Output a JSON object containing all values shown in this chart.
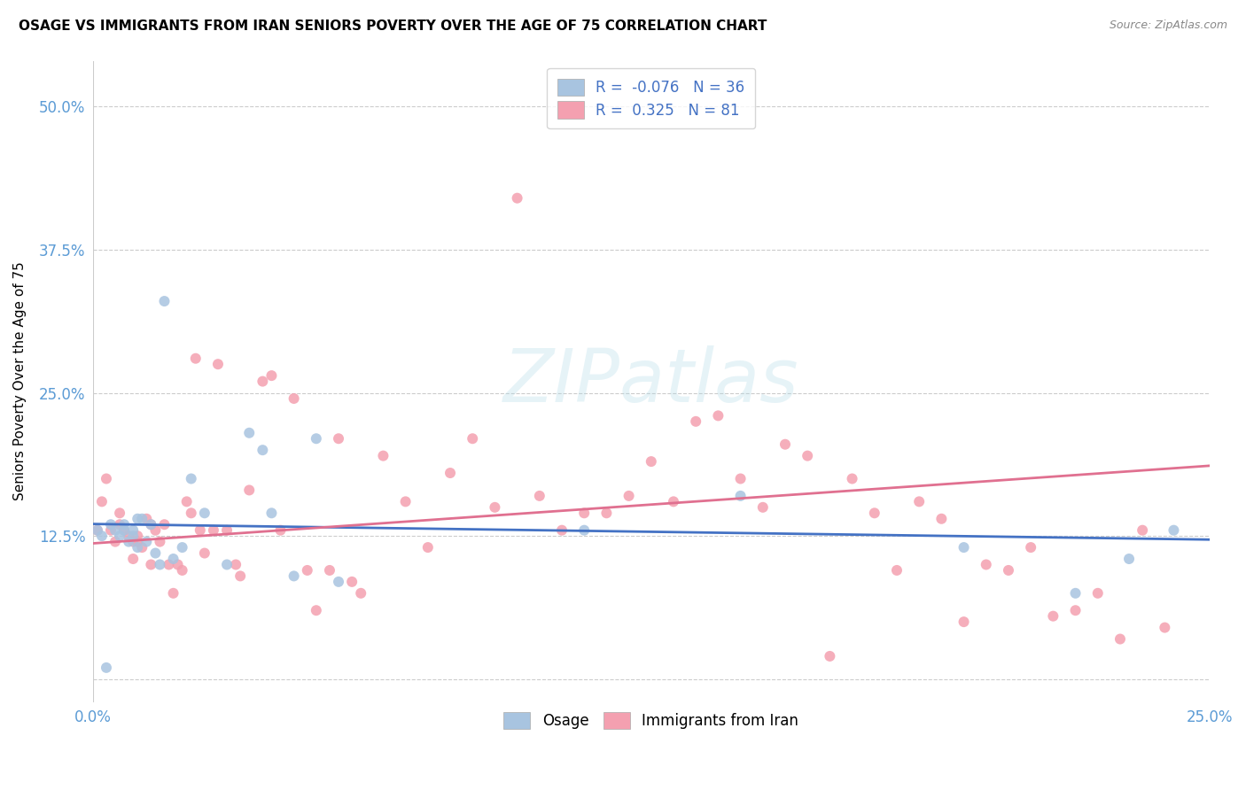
{
  "title": "OSAGE VS IMMIGRANTS FROM IRAN SENIORS POVERTY OVER THE AGE OF 75 CORRELATION CHART",
  "source": "Source: ZipAtlas.com",
  "ylabel": "Seniors Poverty Over the Age of 75",
  "xlim": [
    0.0,
    0.25
  ],
  "ylim": [
    -0.02,
    0.54
  ],
  "yticks": [
    0.0,
    0.125,
    0.25,
    0.375,
    0.5
  ],
  "ytick_labels": [
    "",
    "12.5%",
    "25.0%",
    "37.5%",
    "50.0%"
  ],
  "xticks": [
    0.0,
    0.05,
    0.1,
    0.15,
    0.2,
    0.25
  ],
  "xtick_labels": [
    "0.0%",
    "",
    "",
    "",
    "",
    "25.0%"
  ],
  "osage_R": -0.076,
  "osage_N": 36,
  "iran_R": 0.325,
  "iran_N": 81,
  "osage_color": "#a8c4e0",
  "iran_color": "#f4a0b0",
  "osage_line_color": "#4472c4",
  "iran_line_color": "#e07090",
  "tick_label_color": "#5b9bd5",
  "background_color": "#ffffff",
  "grid_color": "#cccccc",
  "osage_x": [
    0.001,
    0.002,
    0.003,
    0.004,
    0.005,
    0.006,
    0.007,
    0.007,
    0.008,
    0.009,
    0.009,
    0.01,
    0.01,
    0.011,
    0.012,
    0.013,
    0.014,
    0.015,
    0.016,
    0.018,
    0.02,
    0.022,
    0.025,
    0.03,
    0.035,
    0.038,
    0.04,
    0.045,
    0.05,
    0.055,
    0.11,
    0.145,
    0.195,
    0.22,
    0.232,
    0.242
  ],
  "osage_y": [
    0.13,
    0.125,
    0.01,
    0.135,
    0.13,
    0.125,
    0.135,
    0.13,
    0.12,
    0.13,
    0.125,
    0.115,
    0.14,
    0.14,
    0.12,
    0.135,
    0.11,
    0.1,
    0.33,
    0.105,
    0.115,
    0.175,
    0.145,
    0.1,
    0.215,
    0.2,
    0.145,
    0.09,
    0.21,
    0.085,
    0.13,
    0.16,
    0.115,
    0.075,
    0.105,
    0.13
  ],
  "iran_x": [
    0.001,
    0.002,
    0.003,
    0.004,
    0.005,
    0.006,
    0.006,
    0.007,
    0.008,
    0.009,
    0.009,
    0.01,
    0.01,
    0.011,
    0.012,
    0.013,
    0.013,
    0.014,
    0.015,
    0.016,
    0.017,
    0.018,
    0.019,
    0.02,
    0.021,
    0.022,
    0.023,
    0.024,
    0.025,
    0.027,
    0.028,
    0.03,
    0.032,
    0.033,
    0.035,
    0.038,
    0.04,
    0.042,
    0.045,
    0.048,
    0.05,
    0.053,
    0.055,
    0.058,
    0.06,
    0.065,
    0.07,
    0.075,
    0.08,
    0.085,
    0.09,
    0.095,
    0.1,
    0.105,
    0.11,
    0.115,
    0.12,
    0.125,
    0.13,
    0.135,
    0.14,
    0.145,
    0.15,
    0.155,
    0.16,
    0.165,
    0.17,
    0.175,
    0.18,
    0.185,
    0.19,
    0.195,
    0.2,
    0.205,
    0.21,
    0.215,
    0.22,
    0.225,
    0.23,
    0.235,
    0.24
  ],
  "iran_y": [
    0.13,
    0.155,
    0.175,
    0.13,
    0.12,
    0.135,
    0.145,
    0.13,
    0.125,
    0.12,
    0.105,
    0.12,
    0.125,
    0.115,
    0.14,
    0.1,
    0.135,
    0.13,
    0.12,
    0.135,
    0.1,
    0.075,
    0.1,
    0.095,
    0.155,
    0.145,
    0.28,
    0.13,
    0.11,
    0.13,
    0.275,
    0.13,
    0.1,
    0.09,
    0.165,
    0.26,
    0.265,
    0.13,
    0.245,
    0.095,
    0.06,
    0.095,
    0.21,
    0.085,
    0.075,
    0.195,
    0.155,
    0.115,
    0.18,
    0.21,
    0.15,
    0.42,
    0.16,
    0.13,
    0.145,
    0.145,
    0.16,
    0.19,
    0.155,
    0.225,
    0.23,
    0.175,
    0.15,
    0.205,
    0.195,
    0.02,
    0.175,
    0.145,
    0.095,
    0.155,
    0.14,
    0.05,
    0.1,
    0.095,
    0.115,
    0.055,
    0.06,
    0.075,
    0.035,
    0.13,
    0.045
  ]
}
